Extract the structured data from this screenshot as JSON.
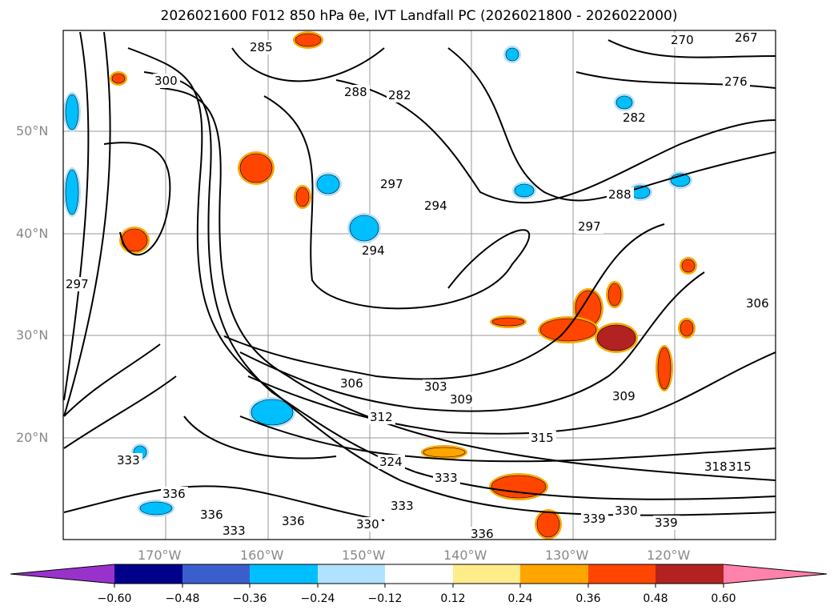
{
  "title": "2026021600 F012 850 hPa θe, IVT Landfall PC (2026021800 - 2026022000)",
  "map": {
    "lon_labels": [
      "170°W",
      "160°W",
      "150°W",
      "140°W",
      "130°W",
      "120°W"
    ],
    "lat_labels": [
      "50°N",
      "40°N",
      "30°N",
      "20°N"
    ],
    "contour_labels": [
      "270",
      "267",
      "285",
      "300",
      "282",
      "288",
      "276",
      "282",
      "297",
      "294",
      "294",
      "297",
      "288",
      "297",
      "306",
      "303",
      "312",
      "309",
      "315",
      "309",
      "324",
      "333",
      "318",
      "315",
      "333",
      "339",
      "330",
      "339",
      "336",
      "333",
      "336",
      "330",
      "336",
      "333",
      "336",
      "306"
    ]
  },
  "colorbar": {
    "tick_labels": [
      "−0.60",
      "−0.48",
      "−0.36",
      "−0.24",
      "−0.12",
      "0.12",
      "0.24",
      "0.36",
      "0.48",
      "0.60"
    ],
    "colors": [
      "#9932cc",
      "#00008b",
      "#3a5fcd",
      "#00bfff",
      "#b0e2ff",
      "#ffffff",
      "#ffec8b",
      "#ffa500",
      "#ff4500",
      "#b22222",
      "#ff82ab"
    ]
  }
}
